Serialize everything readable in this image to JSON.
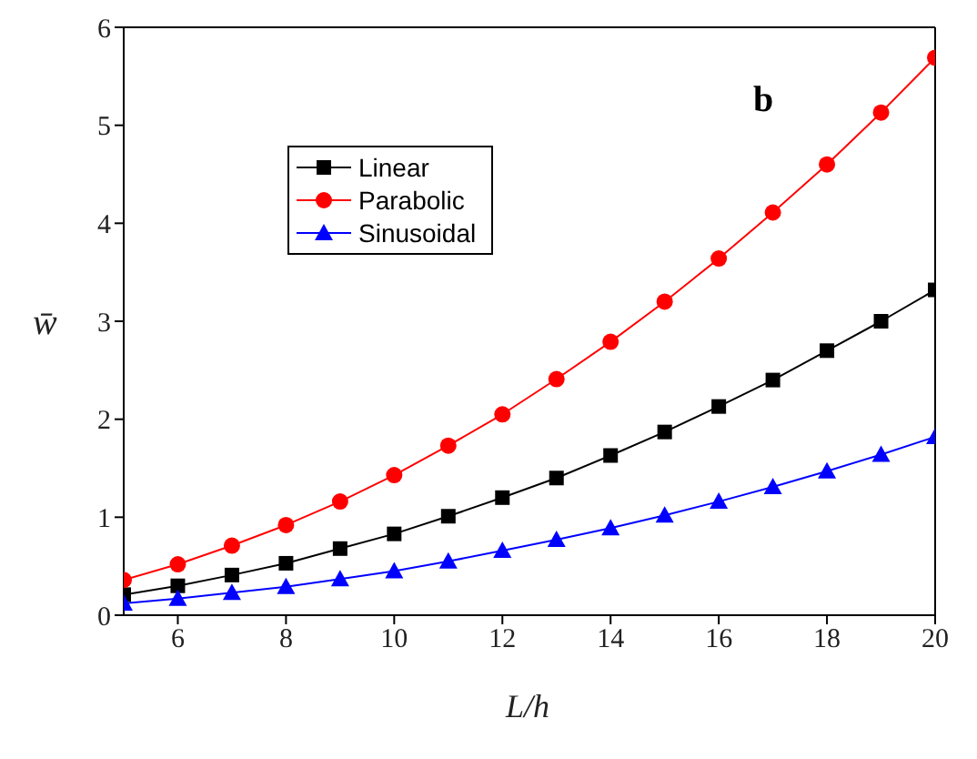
{
  "chart_data": {
    "type": "line",
    "xlabel": "L/h",
    "ylabel": "w̄",
    "annotations": [
      "b"
    ],
    "x": [
      5,
      6,
      7,
      8,
      9,
      10,
      11,
      12,
      13,
      14,
      15,
      16,
      17,
      18,
      19,
      20
    ],
    "series": [
      {
        "name": "Linear",
        "color": "#000000",
        "marker": "square",
        "values": [
          0.21,
          0.3,
          0.41,
          0.53,
          0.68,
          0.83,
          1.01,
          1.2,
          1.4,
          1.63,
          1.87,
          2.13,
          2.4,
          2.7,
          3.0,
          3.32
        ]
      },
      {
        "name": "Parabolic",
        "color": "#ff0000",
        "marker": "circle",
        "values": [
          0.36,
          0.52,
          0.71,
          0.92,
          1.16,
          1.43,
          1.73,
          2.05,
          2.41,
          2.79,
          3.2,
          3.64,
          4.11,
          4.6,
          5.13,
          5.69
        ]
      },
      {
        "name": "Sinusoidal",
        "color": "#0000ff",
        "marker": "triangle",
        "values": [
          0.12,
          0.17,
          0.23,
          0.29,
          0.37,
          0.45,
          0.55,
          0.66,
          0.77,
          0.89,
          1.02,
          1.16,
          1.31,
          1.47,
          1.64,
          1.82
        ]
      }
    ],
    "xlim": [
      5,
      20
    ],
    "xticks": [
      6,
      8,
      10,
      12,
      14,
      16,
      18,
      20
    ],
    "ylim": [
      0,
      6
    ],
    "yticks": [
      0,
      1,
      2,
      3,
      4,
      5,
      6
    ],
    "grid": false,
    "legend": "top left",
    "line_style": "solid"
  }
}
